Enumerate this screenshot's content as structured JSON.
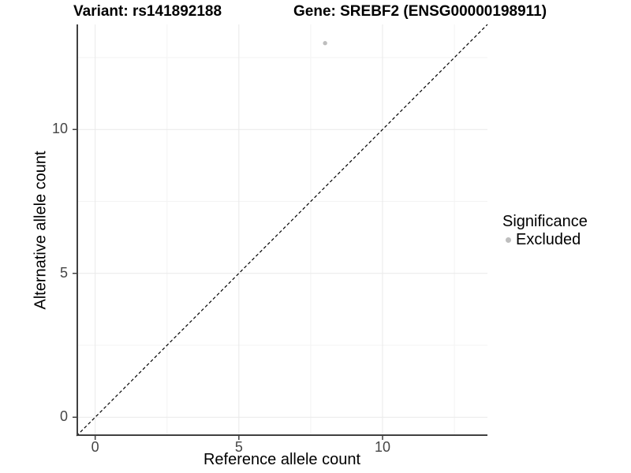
{
  "title": {
    "left": "Variant: rs141892188",
    "right": "Gene: SREBF2 (ENSG00000198911)"
  },
  "chart_data": {
    "type": "scatter",
    "title": "Variant: rs141892188   Gene: SREBF2 (ENSG00000198911)",
    "xlabel": "Reference allele count",
    "ylabel": "Alternative allele count",
    "xlim": [
      -0.65,
      13.65
    ],
    "ylim": [
      -0.65,
      13.65
    ],
    "x_ticks": [
      0,
      5,
      10
    ],
    "y_ticks": [
      0,
      5,
      10
    ],
    "x_minor_gridlines": [
      2.5,
      7.5,
      12.5
    ],
    "y_minor_gridlines": [
      2.5,
      7.5,
      12.5
    ],
    "grid": "major and minor, light grey on white",
    "points": [
      {
        "x": 8,
        "y": 13,
        "series": "Excluded"
      }
    ],
    "reference_line": {
      "kind": "identity y=x",
      "from": [
        -0.65,
        -0.65
      ],
      "to": [
        13.65,
        13.65
      ],
      "style": "dashed",
      "color": "#000000"
    },
    "legend": {
      "title": "Significance",
      "position": "right",
      "items": [
        {
          "label": "Excluded",
          "marker": "circle",
          "color": "#bebebe"
        }
      ]
    }
  },
  "colors": {
    "point_excluded": "#bebebe",
    "axis_line": "#404040",
    "tick_label": "#454545",
    "major_grid": "#e9e9e9",
    "minor_grid": "#f3f3f3",
    "background": "#ffffff"
  }
}
